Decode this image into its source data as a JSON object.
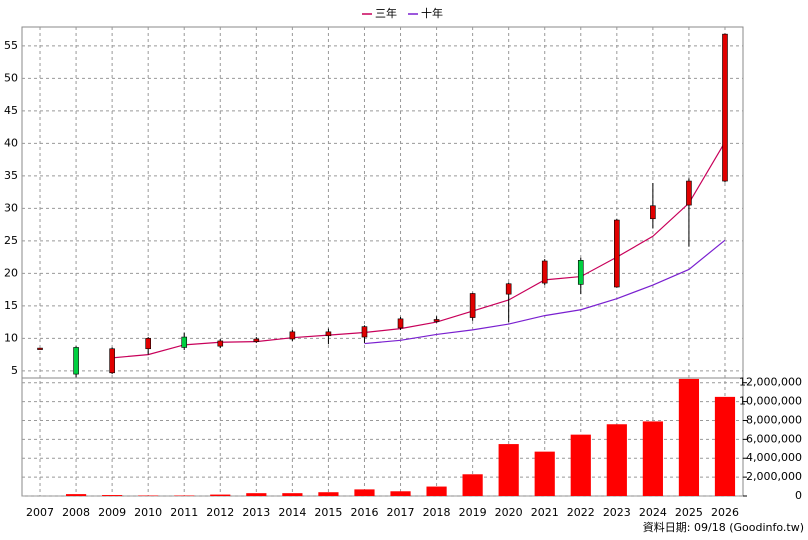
{
  "chart_data": {
    "type": "candlestick",
    "categories": [
      "2007",
      "2008",
      "2009",
      "2010",
      "2011",
      "2012",
      "2013",
      "2014",
      "2015",
      "2016",
      "2017",
      "2018",
      "2019",
      "2020",
      "2021",
      "2022",
      "2023",
      "2024",
      "2025",
      "2026"
    ],
    "open": [
      8.4,
      8.6,
      4.7,
      8.4,
      10.2,
      8.8,
      9.5,
      9.9,
      10.4,
      10.2,
      11.6,
      12.6,
      13.2,
      16.8,
      18.5,
      22.0,
      17.9,
      28.4,
      30.5,
      34.2
    ],
    "high": [
      8.5,
      8.8,
      8.6,
      10.2,
      10.9,
      9.9,
      10.2,
      11.3,
      11.5,
      12.0,
      13.3,
      13.4,
      17.0,
      18.6,
      22.2,
      22.4,
      28.4,
      33.9,
      34.6,
      56.9
    ],
    "low": [
      8.3,
      4.0,
      4.5,
      7.5,
      8.2,
      8.5,
      9.3,
      9.6,
      9.1,
      9.3,
      11.3,
      12.4,
      12.7,
      12.5,
      18.2,
      16.8,
      17.8,
      26.9,
      24.1,
      34.0
    ],
    "close": [
      8.5,
      4.5,
      8.4,
      10.0,
      8.6,
      9.6,
      9.9,
      11.0,
      11.0,
      11.8,
      13.0,
      12.9,
      16.9,
      18.4,
      21.9,
      18.3,
      28.2,
      30.4,
      34.2,
      56.8
    ],
    "up_color": "#e00000",
    "down_color": "#00d040",
    "series": [
      {
        "name": "三年",
        "color": "#c8005a",
        "values": [
          null,
          null,
          7.0,
          7.5,
          9.0,
          9.4,
          9.5,
          10.1,
          10.5,
          10.9,
          11.5,
          12.5,
          14.2,
          15.9,
          19.0,
          19.5,
          22.5,
          25.7,
          30.8,
          40.2
        ]
      },
      {
        "name": "十年",
        "color": "#7a20d0",
        "values": [
          null,
          null,
          null,
          null,
          null,
          null,
          null,
          null,
          null,
          9.2,
          9.7,
          10.6,
          11.3,
          12.2,
          13.5,
          14.4,
          16.1,
          18.2,
          20.6,
          25.1
        ]
      }
    ],
    "volume": {
      "axis": "y2",
      "color": "#ff0000",
      "values": [
        0,
        200000,
        100000,
        50000,
        50000,
        150000,
        300000,
        300000,
        400000,
        700000,
        500000,
        1000000,
        2300000,
        5500000,
        4700000,
        6500000,
        7600000,
        7900000,
        12400000,
        10500000
      ]
    },
    "ylim": [
      3.9,
      57.9
    ],
    "yticks": [
      5,
      10,
      15,
      20,
      25,
      30,
      35,
      40,
      45,
      50,
      55
    ],
    "y2lim": [
      0,
      12500000
    ],
    "y2ticks": [
      0,
      {
        "value": 2000000,
        "label": "2,000,000"
      },
      {
        "value": 4000000,
        "label": "4,000,000"
      },
      {
        "value": 6000000,
        "label": "6,000,000"
      },
      {
        "value": 8000000,
        "label": "8,000,000"
      },
      {
        "value": 10000000,
        "label": "10,000,000"
      },
      {
        "value": 12000000,
        "label": "12,000,000"
      }
    ],
    "grid": true,
    "legend": "top",
    "source": "資料日期: 09/18 (Goodinfo.tw)"
  }
}
